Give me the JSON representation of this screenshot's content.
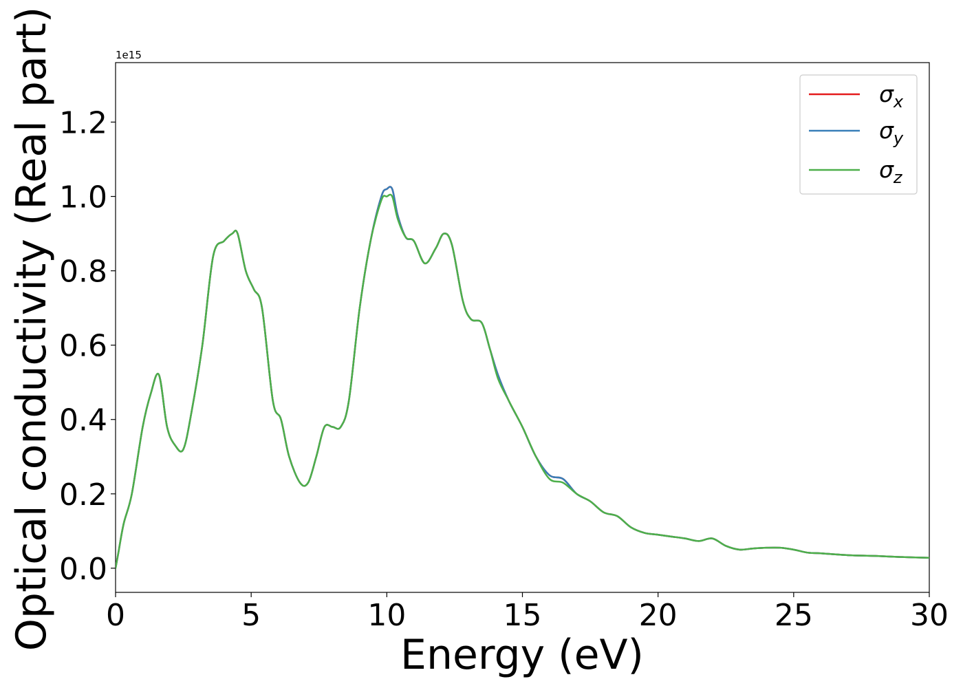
{
  "chart_data": {
    "type": "line",
    "xlabel": "Energy (eV)",
    "ylabel": "Optical conductivity (Real part)",
    "offset_label": "1e15",
    "xlim": [
      0,
      30
    ],
    "ylim": [
      -0.065,
      1.36
    ],
    "x_ticks": [
      0,
      5,
      10,
      15,
      20,
      25,
      30
    ],
    "x_tick_labels": [
      "0",
      "5",
      "10",
      "15",
      "20",
      "25",
      "30"
    ],
    "y_ticks": [
      0.0,
      0.2,
      0.4,
      0.6,
      0.8,
      1.0,
      1.2
    ],
    "y_tick_labels": [
      "0.0",
      "0.2",
      "0.4",
      "0.6",
      "0.8",
      "1.0",
      "1.2"
    ],
    "grid": false,
    "legend_position": "top-right",
    "x": [
      0,
      0.1,
      0.3,
      0.6,
      1.0,
      1.3,
      1.6,
      1.9,
      2.2,
      2.5,
      2.8,
      3.2,
      3.6,
      4.0,
      4.3,
      4.5,
      4.8,
      5.1,
      5.4,
      5.8,
      6.1,
      6.4,
      6.8,
      7.1,
      7.4,
      7.7,
      8.0,
      8.3,
      8.6,
      9.0,
      9.4,
      9.8,
      10.0,
      10.2,
      10.4,
      10.7,
      11.0,
      11.4,
      11.8,
      12.1,
      12.4,
      12.8,
      13.1,
      13.5,
      13.8,
      14.1,
      14.5,
      15.0,
      15.5,
      16.0,
      16.5,
      17.0,
      17.5,
      18.0,
      18.5,
      19.0,
      19.5,
      20.0,
      20.5,
      21.0,
      21.5,
      22.0,
      22.5,
      23.0,
      23.5,
      24.0,
      24.5,
      25.0,
      25.5,
      26.0,
      27.0,
      28.0,
      29.0,
      30.0
    ],
    "series": [
      {
        "name": "σx",
        "color": "#e41a1c",
        "values": [
          0.0,
          0.04,
          0.12,
          0.2,
          0.38,
          0.47,
          0.52,
          0.38,
          0.33,
          0.32,
          0.42,
          0.6,
          0.84,
          0.88,
          0.9,
          0.9,
          0.8,
          0.75,
          0.7,
          0.45,
          0.4,
          0.3,
          0.23,
          0.23,
          0.3,
          0.38,
          0.38,
          0.38,
          0.45,
          0.7,
          0.88,
          1.0,
          1.02,
          1.02,
          0.95,
          0.89,
          0.88,
          0.82,
          0.86,
          0.9,
          0.87,
          0.72,
          0.67,
          0.66,
          0.59,
          0.52,
          0.45,
          0.38,
          0.3,
          0.25,
          0.24,
          0.2,
          0.18,
          0.15,
          0.14,
          0.11,
          0.095,
          0.09,
          0.085,
          0.08,
          0.073,
          0.08,
          0.06,
          0.05,
          0.053,
          0.055,
          0.055,
          0.05,
          0.042,
          0.04,
          0.035,
          0.033,
          0.03,
          0.028
        ]
      },
      {
        "name": "σy",
        "color": "#377eb8",
        "values": [
          0.0,
          0.04,
          0.12,
          0.2,
          0.38,
          0.47,
          0.52,
          0.38,
          0.33,
          0.32,
          0.42,
          0.6,
          0.84,
          0.88,
          0.9,
          0.9,
          0.8,
          0.75,
          0.7,
          0.45,
          0.4,
          0.3,
          0.23,
          0.23,
          0.3,
          0.38,
          0.38,
          0.38,
          0.45,
          0.7,
          0.88,
          1.0,
          1.02,
          1.02,
          0.95,
          0.89,
          0.88,
          0.82,
          0.86,
          0.9,
          0.87,
          0.72,
          0.67,
          0.66,
          0.59,
          0.52,
          0.45,
          0.38,
          0.3,
          0.25,
          0.24,
          0.2,
          0.18,
          0.15,
          0.14,
          0.11,
          0.095,
          0.09,
          0.085,
          0.08,
          0.073,
          0.08,
          0.06,
          0.05,
          0.053,
          0.055,
          0.055,
          0.05,
          0.042,
          0.04,
          0.035,
          0.033,
          0.03,
          0.028
        ]
      },
      {
        "name": "σz",
        "color": "#4daf4a",
        "values": [
          0.0,
          0.04,
          0.12,
          0.2,
          0.38,
          0.47,
          0.52,
          0.38,
          0.33,
          0.32,
          0.42,
          0.6,
          0.84,
          0.88,
          0.9,
          0.9,
          0.8,
          0.75,
          0.7,
          0.45,
          0.4,
          0.3,
          0.23,
          0.23,
          0.3,
          0.38,
          0.38,
          0.38,
          0.45,
          0.7,
          0.88,
          0.99,
          1.0,
          1.0,
          0.94,
          0.89,
          0.88,
          0.82,
          0.86,
          0.9,
          0.87,
          0.72,
          0.67,
          0.66,
          0.59,
          0.51,
          0.45,
          0.38,
          0.3,
          0.24,
          0.23,
          0.2,
          0.18,
          0.15,
          0.14,
          0.11,
          0.095,
          0.09,
          0.085,
          0.08,
          0.073,
          0.08,
          0.06,
          0.05,
          0.053,
          0.055,
          0.055,
          0.05,
          0.042,
          0.04,
          0.035,
          0.033,
          0.03,
          0.028
        ]
      }
    ]
  },
  "legend": [
    {
      "base": "σ",
      "sub": "x"
    },
    {
      "base": "σ",
      "sub": "y"
    },
    {
      "base": "σ",
      "sub": "z"
    }
  ]
}
